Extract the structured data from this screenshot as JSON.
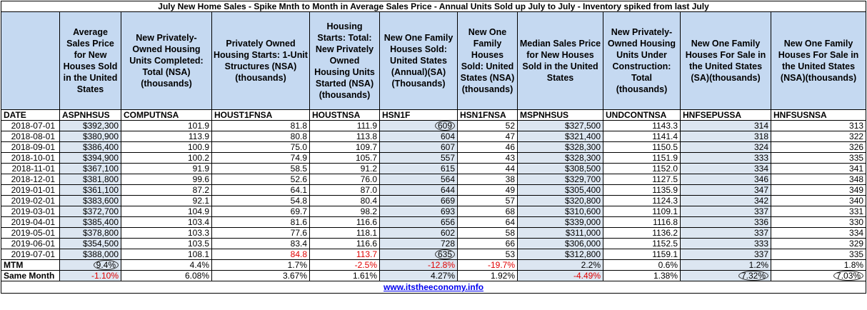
{
  "title": "July New Home Sales - Spike Mnth to Month in Average Sales Price - Annual Units Sold up July to July - Inventory spiked from last July",
  "headers": [
    "",
    "Average Sales Price for New Houses Sold in the United States",
    "New Privately-Owned Housing Units Completed: Total (NSA)(thousands)",
    "Privately Owned Housing Starts: 1-Unit Structures (NSA) (thousands)",
    "Housing Starts: Total: New Privately Owned Housing Units Started (NSA) (thousands)",
    "New One Family Houses Sold: United States (Annual)(SA) (Thousands)",
    "New One Family Houses Sold: United States (NSA) (thousands)",
    "Median Sales Price for New Houses Sold in the United States",
    "New Privately-Owned Housing Units Under Construction: Total (thousands)",
    "New One Family Houses For Sale in the United States (SA)(thousands)",
    "New One Family Houses For Sale in the United States (NSA)(thousands)"
  ],
  "codes": [
    "DATE",
    "ASPNHSUS",
    "COMPUTNSA",
    "HOUST1FNSA",
    "HOUSTNSA",
    "HSN1F",
    "HSN1FNSA",
    "MSPNHSUS",
    "UNDCONTNSA",
    "HNFSEPUSSA",
    "HNFSUSNSA"
  ],
  "rows": [
    [
      "2018-07-01",
      "$392,300",
      "101.9",
      "81.8",
      "111.9",
      "609",
      "52",
      "$327,500",
      "1143.3",
      "314",
      "313"
    ],
    [
      "2018-08-01",
      "$380,900",
      "113.9",
      "80.8",
      "113.8",
      "604",
      "47",
      "$321,400",
      "1141.4",
      "318",
      "322"
    ],
    [
      "2018-09-01",
      "$386,400",
      "100.9",
      "75.0",
      "109.7",
      "607",
      "46",
      "$328,300",
      "1150.5",
      "324",
      "326"
    ],
    [
      "2018-10-01",
      "$394,900",
      "100.2",
      "74.9",
      "105.7",
      "557",
      "43",
      "$328,300",
      "1151.9",
      "333",
      "335"
    ],
    [
      "2018-11-01",
      "$367,100",
      "91.9",
      "58.5",
      "91.2",
      "615",
      "44",
      "$308,500",
      "1152.0",
      "334",
      "341"
    ],
    [
      "2018-12-01",
      "$381,800",
      "99.6",
      "52.6",
      "76.0",
      "564",
      "38",
      "$329,700",
      "1127.5",
      "346",
      "348"
    ],
    [
      "2019-01-01",
      "$361,100",
      "87.2",
      "64.1",
      "87.0",
      "644",
      "49",
      "$305,400",
      "1135.9",
      "347",
      "349"
    ],
    [
      "2019-02-01",
      "$383,600",
      "92.1",
      "54.8",
      "80.4",
      "669",
      "57",
      "$320,800",
      "1124.3",
      "342",
      "340"
    ],
    [
      "2019-03-01",
      "$372,700",
      "104.9",
      "69.7",
      "98.2",
      "693",
      "68",
      "$310,600",
      "1109.1",
      "337",
      "331"
    ],
    [
      "2019-04-01",
      "$385,400",
      "103.4",
      "81.6",
      "116.6",
      "656",
      "64",
      "$339,000",
      "1116.8",
      "336",
      "330"
    ],
    [
      "2019-05-01",
      "$378,800",
      "103.3",
      "77.6",
      "118.1",
      "602",
      "58",
      "$311,000",
      "1136.2",
      "337",
      "334"
    ],
    [
      "2019-06-01",
      "$354,500",
      "103.5",
      "83.4",
      "116.6",
      "728",
      "66",
      "$306,000",
      "1152.5",
      "333",
      "329"
    ],
    [
      "2019-07-01",
      "$388,000",
      "108.1",
      "84.8",
      "113.7",
      "635",
      "53",
      "$312,800",
      "1159.1",
      "337",
      "335"
    ]
  ],
  "mtm": [
    "MTM",
    "9.4%",
    "4.4%",
    "1.7%",
    "-2.5%",
    "-12.8%",
    "-19.7%",
    "2.2%",
    "0.6%",
    "1.2%",
    "1.8%"
  ],
  "same_month": [
    "Same Month",
    "-1.10%",
    "6.08%",
    "3.67%",
    "1.61%",
    "4.27%",
    "1.92%",
    "-4.49%",
    "1.38%",
    "7.32%",
    "7.03%"
  ],
  "footer_link": "www.itstheeconomy.info",
  "colors": {
    "header_bg": "#c5d9f1",
    "highlight_bg": "#dce6f1",
    "negative": "#e00000",
    "link": "#0000ee"
  }
}
